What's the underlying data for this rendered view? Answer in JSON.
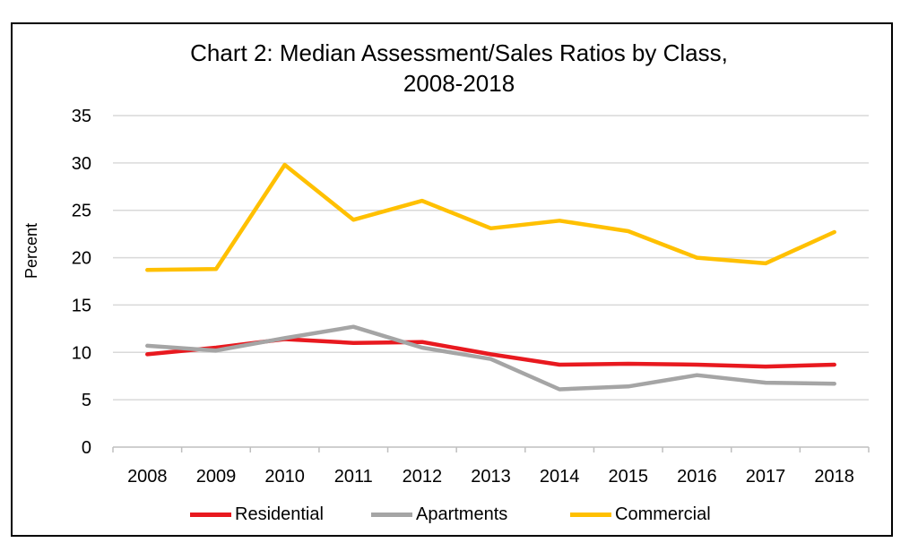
{
  "chart_data": {
    "type": "line",
    "title": "Chart 2:  Median Assessment/Sales Ratios by Class,",
    "subtitle": "2008-2018",
    "xlabel": "",
    "ylabel": "Percent",
    "categories": [
      "2008",
      "2009",
      "2010",
      "2011",
      "2012",
      "2013",
      "2014",
      "2015",
      "2016",
      "2017",
      "2018"
    ],
    "ylim": [
      0,
      35
    ],
    "yticks": [
      0,
      5,
      10,
      15,
      20,
      25,
      30,
      35
    ],
    "grid": true,
    "legend_position": "bottom",
    "series": [
      {
        "name": "Residential",
        "color": "#e8191f",
        "values": [
          9.8,
          10.5,
          11.4,
          11.0,
          11.1,
          9.8,
          8.7,
          8.8,
          8.7,
          8.5,
          8.7
        ]
      },
      {
        "name": "Apartments",
        "color": "#a5a5a5",
        "values": [
          10.7,
          10.2,
          11.5,
          12.7,
          10.5,
          9.3,
          6.1,
          6.4,
          7.6,
          6.8,
          6.7
        ]
      },
      {
        "name": "Commercial",
        "color": "#ffc000",
        "values": [
          18.7,
          18.8,
          29.8,
          24.0,
          26.0,
          23.1,
          23.9,
          22.8,
          20.0,
          19.4,
          22.7
        ]
      }
    ]
  }
}
